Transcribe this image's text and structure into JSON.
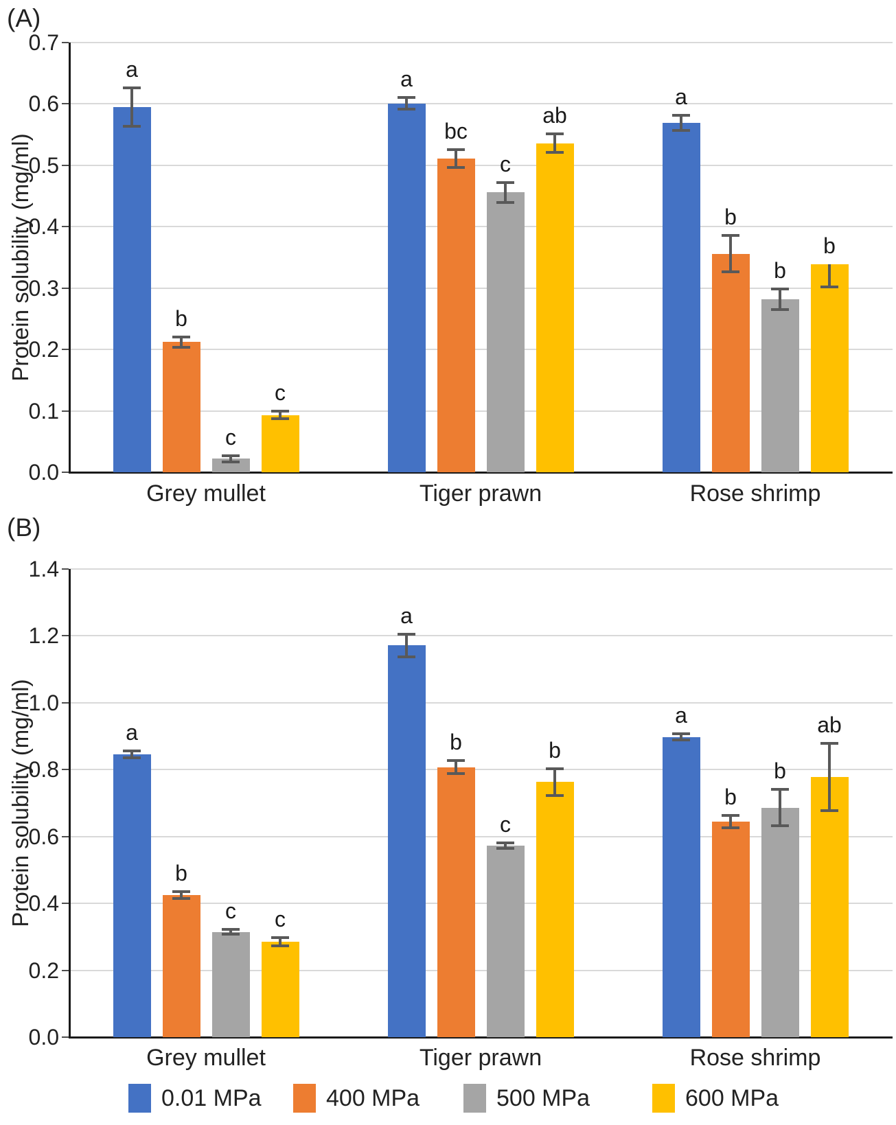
{
  "figure": {
    "description": "Two-panel grouped bar chart of protein solubility under high pressure treatments"
  },
  "legend": {
    "items": [
      {
        "label": "0.01 MPa",
        "color": "#4472C4"
      },
      {
        "label": "400 MPa",
        "color": "#ED7D31"
      },
      {
        "label": "500 MPa",
        "color": "#A5A5A5"
      },
      {
        "label": "600 MPa",
        "color": "#FFC000"
      }
    ]
  },
  "chart_data": [
    {
      "type": "bar",
      "panel_label": "(A)",
      "ylabel": "Protein solubility (mg/ml)",
      "ylim": [
        0,
        0.7
      ],
      "ytick_step": 0.1,
      "ytick_decimals": 1,
      "grid": true,
      "categories": [
        "Grey mullet",
        "Tiger prawn",
        "Rose shrimp"
      ],
      "series": [
        {
          "name": "0.01 MPa",
          "color": "#4472C4",
          "values": [
            0.595,
            0.601,
            0.569
          ],
          "err_up": [
            0.031,
            0.009,
            0.012
          ],
          "err_down": [
            0.031,
            0.009,
            0.012
          ],
          "sig_letters": [
            "a",
            "a",
            "a"
          ]
        },
        {
          "name": "400 MPa",
          "color": "#ED7D31",
          "values": [
            0.212,
            0.511,
            0.356
          ],
          "err_up": [
            0.008,
            0.015,
            0.03
          ],
          "err_down": [
            0.008,
            0.015,
            0.03
          ],
          "sig_letters": [
            "b",
            "bc",
            "b"
          ]
        },
        {
          "name": "500 MPa",
          "color": "#A5A5A5",
          "values": [
            0.022,
            0.456,
            0.282
          ],
          "err_up": [
            0.005,
            0.016,
            0.017
          ],
          "err_down": [
            0.005,
            0.016,
            0.017
          ],
          "sig_letters": [
            "c",
            "c",
            "b"
          ]
        },
        {
          "name": "600 MPa",
          "color": "#FFC000",
          "values": [
            0.093,
            0.536,
            0.339
          ],
          "err_up": [
            0.006,
            0.015,
            0.0
          ],
          "err_down": [
            0.006,
            0.015,
            0.037
          ],
          "sig_letters": [
            "c",
            "ab",
            "b"
          ]
        }
      ]
    },
    {
      "type": "bar",
      "panel_label": "(B)",
      "ylabel": "Protein solubility (mg/ml)",
      "ylim": [
        0,
        1.4
      ],
      "ytick_step": 0.2,
      "ytick_decimals": 1,
      "grid": true,
      "categories": [
        "Grey mullet",
        "Tiger prawn",
        "Rose shrimp"
      ],
      "series": [
        {
          "name": "0.01 MPa",
          "color": "#4472C4",
          "values": [
            0.845,
            1.172,
            0.898
          ],
          "err_up": [
            0.01,
            0.034,
            0.01
          ],
          "err_down": [
            0.01,
            0.034,
            0.01
          ],
          "sig_letters": [
            "a",
            "a",
            "a"
          ]
        },
        {
          "name": "400 MPa",
          "color": "#ED7D31",
          "values": [
            0.425,
            0.807,
            0.645
          ],
          "err_up": [
            0.01,
            0.021,
            0.018
          ],
          "err_down": [
            0.01,
            0.018,
            0.018
          ],
          "sig_letters": [
            "b",
            "b",
            "b"
          ]
        },
        {
          "name": "500 MPa",
          "color": "#A5A5A5",
          "values": [
            0.315,
            0.573,
            0.685
          ],
          "err_up": [
            0.008,
            0.008,
            0.056
          ],
          "err_down": [
            0.008,
            0.008,
            0.052
          ],
          "sig_letters": [
            "c",
            "c",
            "b"
          ]
        },
        {
          "name": "600 MPa",
          "color": "#FFC000",
          "values": [
            0.285,
            0.763,
            0.778
          ],
          "err_up": [
            0.012,
            0.04,
            0.1
          ],
          "err_down": [
            0.012,
            0.04,
            0.1
          ],
          "sig_letters": [
            "c",
            "b",
            "ab"
          ]
        }
      ]
    }
  ]
}
